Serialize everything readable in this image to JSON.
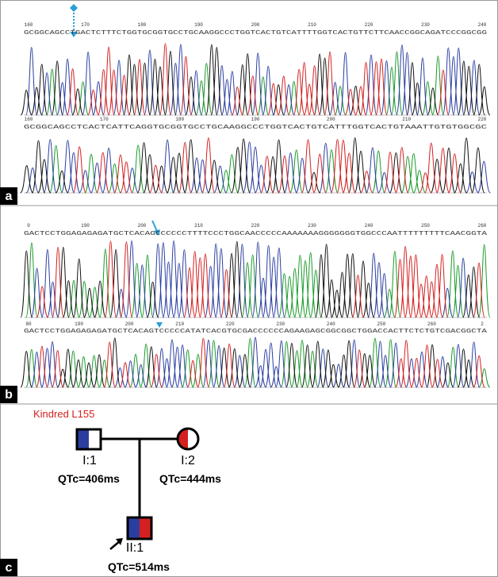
{
  "panels": [
    {
      "label": "a",
      "tracks": [
        {
          "ticks": [
            160,
            170,
            180,
            190,
            200,
            210,
            220,
            230,
            240
          ],
          "sequence": "GCGGCAGCCTGACTCTTTCTGGTGCGGTGCCTGCAAGGCCCTGGTCACTGTCATTTTGGTCACTGTTCTTCAACCGGCAGATCCCGGCGG"
        },
        {
          "ticks": [
            160,
            170,
            180,
            190,
            200,
            210,
            220
          ],
          "sequence": "GCGGCAGCCTCACTCATTCAGGTGCGGTGCCTGCAAGGCCCTGGTCACTGTCATTTGGTCACTGTAAATTGTGTGGCGC"
        }
      ]
    },
    {
      "label": "b",
      "tracks": [
        {
          "ticks": [
            0,
            190,
            200,
            210,
            220,
            230,
            240,
            250,
            260
          ],
          "sequence": "GACTCCTGGAGAGAGATGCTCACAGCCCCCCTTTTCCCTGGCAACCCCCAAAAAAAGGGGGGGTGGCCCAATTTTTTTTTCAACGGTA"
        },
        {
          "ticks": [
            80,
            190,
            200,
            210,
            220,
            230,
            240,
            250,
            260,
            2
          ],
          "sequence": "GACTCCTGGAGAGAGATGCTCACAGTCCCCCATATCACGTGCGACCCCCCAGAAGAGCGGCGGCTGGACCACTTCTCTGTCGACGGCTA"
        }
      ]
    }
  ],
  "pedigree": {
    "label": "c",
    "title": "Kindred L155",
    "individuals": [
      {
        "id": "I:1",
        "qtc": "QTc=406ms"
      },
      {
        "id": "I:2",
        "qtc": "QTc=444ms"
      },
      {
        "id": "II:1",
        "qtc": "QTc=514ms"
      }
    ]
  }
}
